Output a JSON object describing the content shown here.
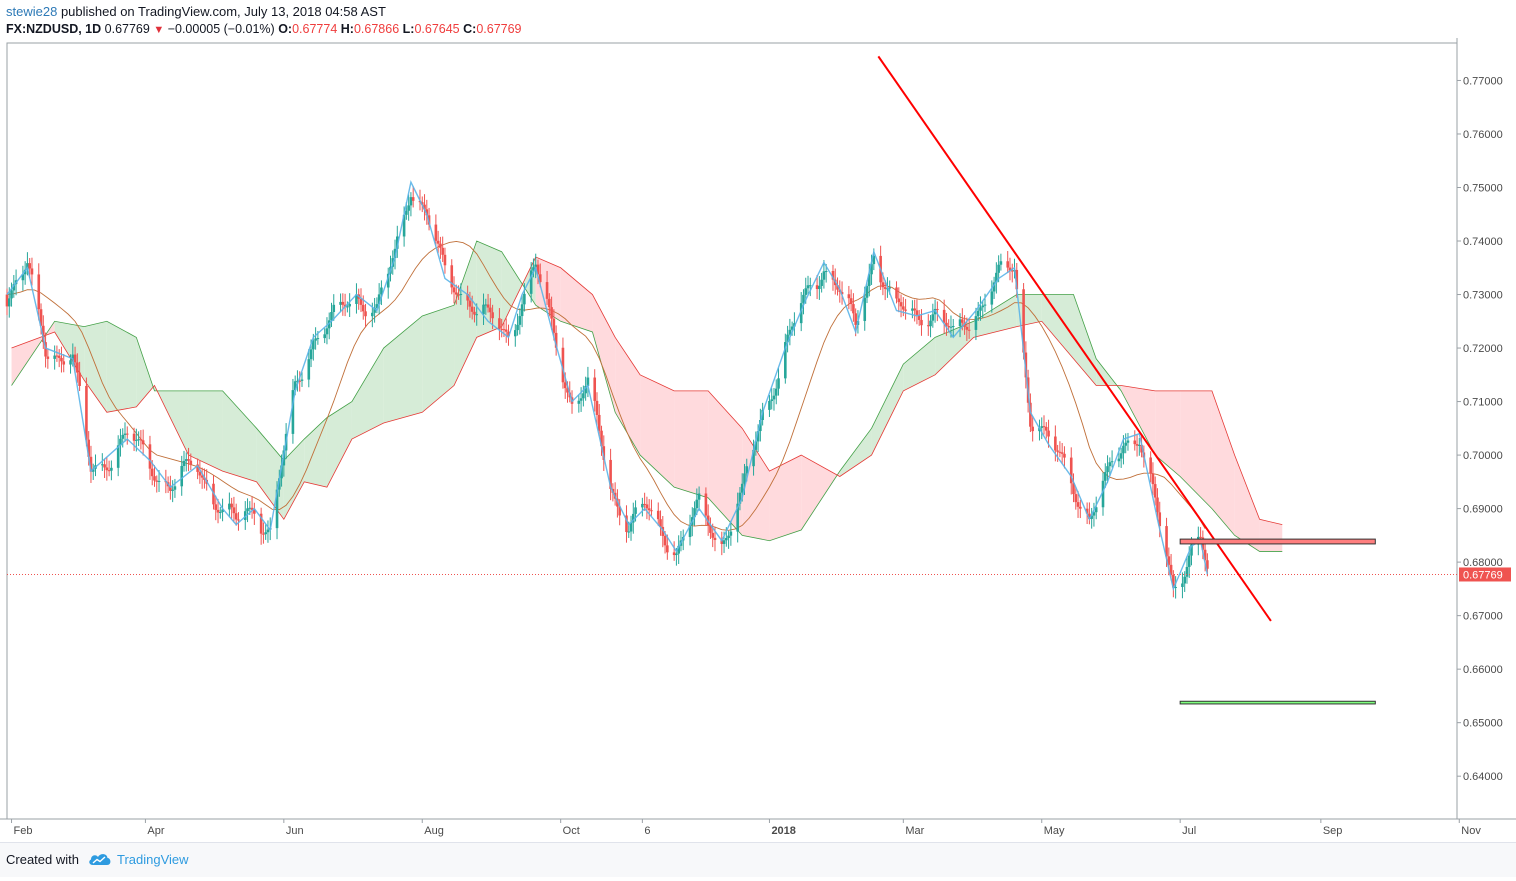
{
  "header": {
    "author": "stewie28",
    "published": "published on TradingView.com, July 13, 2018 04:58 AST",
    "symbol": "FX:NZDUSD, 1D",
    "last": "0.67769",
    "change_arrow": "▼",
    "change": "−0.00005 (−0.01%)",
    "o_label": "O:",
    "o_value": "0.67774",
    "h_label": "H:",
    "h_value": "0.67866",
    "l_label": "L:",
    "l_value": "0.67645",
    "c_label": "C:",
    "c_value": "0.67769"
  },
  "footer": {
    "created_with": "Created with",
    "brand": "TradingView",
    "logo_icon": "tradingview-cloud-icon"
  },
  "colors": {
    "bull": "#26a69a",
    "bear": "#ef5350",
    "trendline": "#ff0000",
    "resistance_box": "#ff7f7f",
    "target_box": "#7fff7f",
    "tenkan": "#5ab4e8",
    "cloud_bull": "#c8e6c9",
    "cloud_bear": "#ffcdd2",
    "price_label": "#ef5350"
  },
  "chart_data": {
    "type": "candlestick",
    "symbol": "FX:NZDUSD",
    "interval": "1D",
    "ylim": [
      0.632,
      0.777
    ],
    "y_ticks": [
      "0.77000",
      "0.76000",
      "0.75000",
      "0.74000",
      "0.73000",
      "0.72000",
      "0.71000",
      "0.70000",
      "0.69000",
      "0.68000",
      "0.67000",
      "0.66000",
      "0.65000",
      "0.64000"
    ],
    "x_range": [
      "2017-01-30",
      "2018-10-31"
    ],
    "x_ticks": [
      {
        "date": "2017-02-01",
        "label": "Feb"
      },
      {
        "date": "2017-04-01",
        "label": "Apr"
      },
      {
        "date": "2017-06-01",
        "label": "Jun"
      },
      {
        "date": "2017-08-01",
        "label": "Aug"
      },
      {
        "date": "2017-10-01",
        "label": "Oct"
      },
      {
        "date": "2017-11-06",
        "label": "6"
      },
      {
        "date": "2018-01-01",
        "label": "2018"
      },
      {
        "date": "2018-03-01",
        "label": "Mar"
      },
      {
        "date": "2018-05-01",
        "label": "May"
      },
      {
        "date": "2018-07-01",
        "label": "Jul"
      },
      {
        "date": "2018-09-01",
        "label": "Sep"
      },
      {
        "date": "2018-11-01",
        "label": "Nov"
      }
    ],
    "last_price": 0.67769,
    "last_price_label": "0.67769",
    "price_path": [
      [
        "2017-01-30",
        0.73
      ],
      [
        "2017-02-08",
        0.735
      ],
      [
        "2017-02-16",
        0.72
      ],
      [
        "2017-02-28",
        0.718
      ],
      [
        "2017-03-08",
        0.697
      ],
      [
        "2017-03-16",
        0.7
      ],
      [
        "2017-03-24",
        0.703
      ],
      [
        "2017-04-03",
        0.699
      ],
      [
        "2017-04-12",
        0.694
      ],
      [
        "2017-04-24",
        0.698
      ],
      [
        "2017-05-05",
        0.69
      ],
      [
        "2017-05-11",
        0.687
      ],
      [
        "2017-05-19",
        0.69
      ],
      [
        "2017-05-26",
        0.686
      ],
      [
        "2017-06-06",
        0.712
      ],
      [
        "2017-06-14",
        0.722
      ],
      [
        "2017-06-22",
        0.725
      ],
      [
        "2017-07-03",
        0.73
      ],
      [
        "2017-07-12",
        0.727
      ],
      [
        "2017-07-20",
        0.737
      ],
      [
        "2017-07-27",
        0.751
      ],
      [
        "2017-08-03",
        0.745
      ],
      [
        "2017-08-11",
        0.733
      ],
      [
        "2017-08-21",
        0.73
      ],
      [
        "2017-08-30",
        0.725
      ],
      [
        "2017-09-08",
        0.722
      ],
      [
        "2017-09-14",
        0.73
      ],
      [
        "2017-09-20",
        0.735
      ],
      [
        "2017-09-28",
        0.722
      ],
      [
        "2017-10-06",
        0.71
      ],
      [
        "2017-10-13",
        0.713
      ],
      [
        "2017-10-23",
        0.694
      ],
      [
        "2017-10-31",
        0.687
      ],
      [
        "2017-11-07",
        0.69
      ],
      [
        "2017-11-15",
        0.686
      ],
      [
        "2017-11-21",
        0.682
      ],
      [
        "2017-12-01",
        0.69
      ],
      [
        "2017-12-11",
        0.684
      ],
      [
        "2017-12-20",
        0.692
      ],
      [
        "2017-12-29",
        0.708
      ],
      [
        "2018-01-08",
        0.72
      ],
      [
        "2018-01-17",
        0.729
      ],
      [
        "2018-01-25",
        0.736
      ],
      [
        "2018-02-01",
        0.731
      ],
      [
        "2018-02-08",
        0.723
      ],
      [
        "2018-02-16",
        0.738
      ],
      [
        "2018-02-26",
        0.727
      ],
      [
        "2018-03-07",
        0.726
      ],
      [
        "2018-03-15",
        0.727
      ],
      [
        "2018-03-23",
        0.722
      ],
      [
        "2018-04-02",
        0.727
      ],
      [
        "2018-04-12",
        0.733
      ],
      [
        "2018-04-19",
        0.735
      ],
      [
        "2018-04-26",
        0.708
      ],
      [
        "2018-05-04",
        0.702
      ],
      [
        "2018-05-14",
        0.696
      ],
      [
        "2018-05-22",
        0.688
      ],
      [
        "2018-05-30",
        0.695
      ],
      [
        "2018-06-06",
        0.703
      ],
      [
        "2018-06-13",
        0.704
      ],
      [
        "2018-06-21",
        0.688
      ],
      [
        "2018-06-28",
        0.675
      ],
      [
        "2018-07-03",
        0.68
      ],
      [
        "2018-07-06",
        0.683
      ],
      [
        "2018-07-10",
        0.684
      ],
      [
        "2018-07-13",
        0.6777
      ]
    ],
    "kumo": [
      [
        "2017-02-01",
        0.713,
        0.72
      ],
      [
        "2017-02-20",
        0.725,
        0.723
      ],
      [
        "2017-03-05",
        0.724,
        0.714
      ],
      [
        "2017-03-15",
        0.725,
        0.708
      ],
      [
        "2017-03-28",
        0.722,
        0.709
      ],
      [
        "2017-04-05",
        0.712,
        0.713
      ],
      [
        "2017-04-20",
        0.712,
        0.7
      ],
      [
        "2017-05-05",
        0.712,
        0.697
      ],
      [
        "2017-05-20",
        0.705,
        0.695
      ],
      [
        "2017-06-01",
        0.699,
        0.688
      ],
      [
        "2017-06-10",
        0.703,
        0.695
      ],
      [
        "2017-06-20",
        0.707,
        0.694
      ],
      [
        "2017-07-01",
        0.71,
        0.703
      ],
      [
        "2017-07-15",
        0.72,
        0.706
      ],
      [
        "2017-08-01",
        0.726,
        0.708
      ],
      [
        "2017-08-15",
        0.728,
        0.713
      ],
      [
        "2017-08-25",
        0.74,
        0.722
      ],
      [
        "2017-09-05",
        0.738,
        0.724
      ],
      [
        "2017-09-20",
        0.728,
        0.737
      ],
      [
        "2017-10-01",
        0.725,
        0.735
      ],
      [
        "2017-10-15",
        0.723,
        0.73
      ],
      [
        "2017-10-25",
        0.708,
        0.722
      ],
      [
        "2017-11-05",
        0.7,
        0.715
      ],
      [
        "2017-11-20",
        0.694,
        0.712
      ],
      [
        "2017-12-05",
        0.692,
        0.712
      ],
      [
        "2017-12-20",
        0.685,
        0.705
      ],
      [
        "2018-01-01",
        0.684,
        0.697
      ],
      [
        "2018-01-15",
        0.686,
        0.7
      ],
      [
        "2018-02-01",
        0.697,
        0.696
      ],
      [
        "2018-02-15",
        0.705,
        0.7
      ],
      [
        "2018-03-01",
        0.717,
        0.712
      ],
      [
        "2018-03-15",
        0.722,
        0.715
      ],
      [
        "2018-04-01",
        0.725,
        0.722
      ],
      [
        "2018-04-20",
        0.73,
        0.724
      ],
      [
        "2018-05-01",
        0.73,
        0.725
      ],
      [
        "2018-05-15",
        0.73,
        0.718
      ],
      [
        "2018-05-25",
        0.718,
        0.713
      ],
      [
        "2018-06-05",
        0.712,
        0.713
      ],
      [
        "2018-06-20",
        0.7,
        0.712
      ],
      [
        "2018-07-01",
        0.696,
        0.712
      ],
      [
        "2018-07-15",
        0.69,
        0.712
      ],
      [
        "2018-07-25",
        0.685,
        0.7
      ],
      [
        "2018-08-05",
        0.682,
        0.688
      ],
      [
        "2018-08-15",
        0.682,
        0.687
      ]
    ],
    "trendline": [
      [
        "2018-02-18",
        0.7745
      ],
      [
        "2018-08-10",
        0.669
      ]
    ],
    "resistance_zone": [
      [
        "2018-07-01",
        0.6834
      ],
      [
        "2018-09-25",
        0.6843
      ]
    ],
    "target_zone": [
      [
        "2018-07-01",
        0.6535
      ],
      [
        "2018-09-25",
        0.654
      ]
    ]
  }
}
